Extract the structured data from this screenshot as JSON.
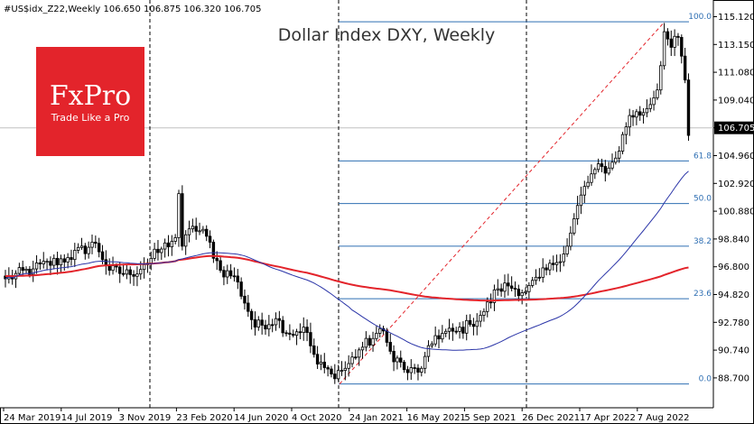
{
  "header": {
    "symbol_line": "#US$idx_Z22,Weekly  106.650 106.875 106.320 106.705"
  },
  "logo": {
    "brand": "FxPro",
    "tagline": "Trade Like a Pro",
    "color": "#e3242b"
  },
  "colors": {
    "up": "#000000",
    "down": "#000000",
    "ma_slow": "#e3242b",
    "ma_fast": "#2b35a8",
    "fib": "#2f6fb3",
    "trend": "#e3242b",
    "grid": "#000000"
  },
  "chart_data": {
    "type": "candlestick",
    "title": "Dollar Index DXY, Weekly",
    "ylim": [
      88.5,
      116.3
    ],
    "y_ticks": [
      "115.120",
      "113.150",
      "111.080",
      "109.040",
      "106.705",
      "104.960",
      "102.920",
      "100.880",
      "98.840",
      "96.800",
      "94.820",
      "92.780",
      "90.740",
      "88.700"
    ],
    "x_ticks": [
      "24 Mar 2019",
      "14 Jul 2019",
      "3 Nov 2019",
      "23 Feb 2020",
      "14 Jun 2020",
      "4 Oct 2020",
      "24 Jan 2021",
      "16 May 2021",
      "5 Sep 2021",
      "26 Dec 2021",
      "17 Apr 2022",
      "7 Aug 2022"
    ],
    "last_price": "106.705",
    "fibonacci": [
      {
        "label": "100.0",
        "level": 114.7
      },
      {
        "label": "61.8",
        "level": 104.9
      },
      {
        "label": "50.0",
        "level": 101.9
      },
      {
        "label": "38.2",
        "level": 98.9
      },
      {
        "label": "23.6",
        "level": 95.2
      },
      {
        "label": "0.0",
        "level": 89.2
      }
    ],
    "weekly_close_keypoints": [
      {
        "week": 0,
        "close": 96.6
      },
      {
        "week": 8,
        "close": 97.3
      },
      {
        "week": 18,
        "close": 98.1
      },
      {
        "week": 26,
        "close": 99.1
      },
      {
        "week": 30,
        "close": 97.2
      },
      {
        "week": 36,
        "close": 96.9
      },
      {
        "week": 40,
        "close": 97.6
      },
      {
        "week": 45,
        "close": 98.7
      },
      {
        "week": 49,
        "close": 99.5
      },
      {
        "week": 50,
        "close": 102.6
      },
      {
        "week": 51,
        "close": 98.9
      },
      {
        "week": 54,
        "close": 100.3
      },
      {
        "week": 58,
        "close": 99.6
      },
      {
        "week": 62,
        "close": 97.2
      },
      {
        "week": 66,
        "close": 96.8
      },
      {
        "week": 72,
        "close": 93.2
      },
      {
        "week": 78,
        "close": 93.8
      },
      {
        "week": 82,
        "close": 92.7
      },
      {
        "week": 86,
        "close": 93.2
      },
      {
        "week": 90,
        "close": 90.6
      },
      {
        "week": 94,
        "close": 89.9
      },
      {
        "week": 98,
        "close": 90.3
      },
      {
        "week": 102,
        "close": 91.6
      },
      {
        "week": 106,
        "close": 92.4
      },
      {
        "week": 108,
        "close": 93.1
      },
      {
        "week": 111,
        "close": 91.5
      },
      {
        "week": 116,
        "close": 90.0
      },
      {
        "week": 120,
        "close": 90.3
      },
      {
        "week": 124,
        "close": 92.6
      },
      {
        "week": 130,
        "close": 92.9
      },
      {
        "week": 134,
        "close": 93.4
      },
      {
        "week": 138,
        "close": 94.3
      },
      {
        "week": 142,
        "close": 95.9
      },
      {
        "week": 145,
        "close": 96.1
      },
      {
        "week": 150,
        "close": 95.7
      },
      {
        "week": 154,
        "close": 96.7
      },
      {
        "week": 158,
        "close": 97.6
      },
      {
        "week": 162,
        "close": 98.9
      },
      {
        "week": 166,
        "close": 102.5
      },
      {
        "week": 170,
        "close": 104.3
      },
      {
        "week": 174,
        "close": 104.4
      },
      {
        "week": 176,
        "close": 105.1
      },
      {
        "week": 180,
        "close": 108.1
      },
      {
        "week": 184,
        "close": 108.3
      },
      {
        "week": 188,
        "close": 109.9
      },
      {
        "week": 190,
        "close": 114.0
      },
      {
        "week": 192,
        "close": 112.9
      },
      {
        "week": 194,
        "close": 113.6
      },
      {
        "week": 196,
        "close": 110.6
      },
      {
        "week": 197,
        "close": 106.7
      }
    ]
  }
}
